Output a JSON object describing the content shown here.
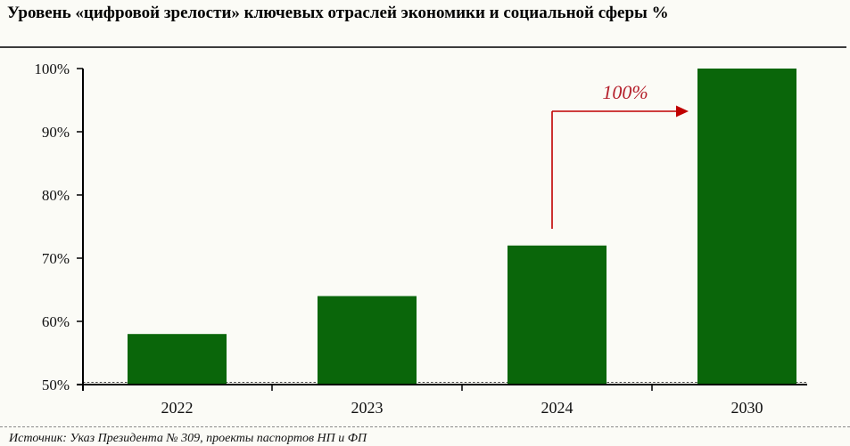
{
  "title": "Уровень «цифровой зрелости» ключевых отраслей экономики и социальной сферы %",
  "source": "Источник: Указ Президента № 309, проекты паспортов НП и ФП",
  "chart_data": {
    "type": "bar",
    "title": "Уровень «цифровой зрелости» ключевых отраслей экономики и социальной сферы %",
    "categories": [
      "2022",
      "2023",
      "2024",
      "2030"
    ],
    "values": [
      58,
      64,
      72,
      100
    ],
    "xlabel": "",
    "ylabel": "",
    "ylim": [
      50,
      100
    ],
    "yticks": [
      {
        "value": 50,
        "label": "50%"
      },
      {
        "value": 60,
        "label": "60%"
      },
      {
        "value": 70,
        "label": "70%"
      },
      {
        "value": 80,
        "label": "80%"
      },
      {
        "value": 90,
        "label": "90%"
      },
      {
        "value": 100,
        "label": "100%"
      }
    ],
    "grid": false,
    "legend": "none",
    "bar_color": "#0a660a",
    "axis_color": "#000000",
    "annotation": {
      "text": "100%",
      "color": "#b5202c",
      "arrow_color": "#c00000",
      "points_to": "2030"
    }
  }
}
